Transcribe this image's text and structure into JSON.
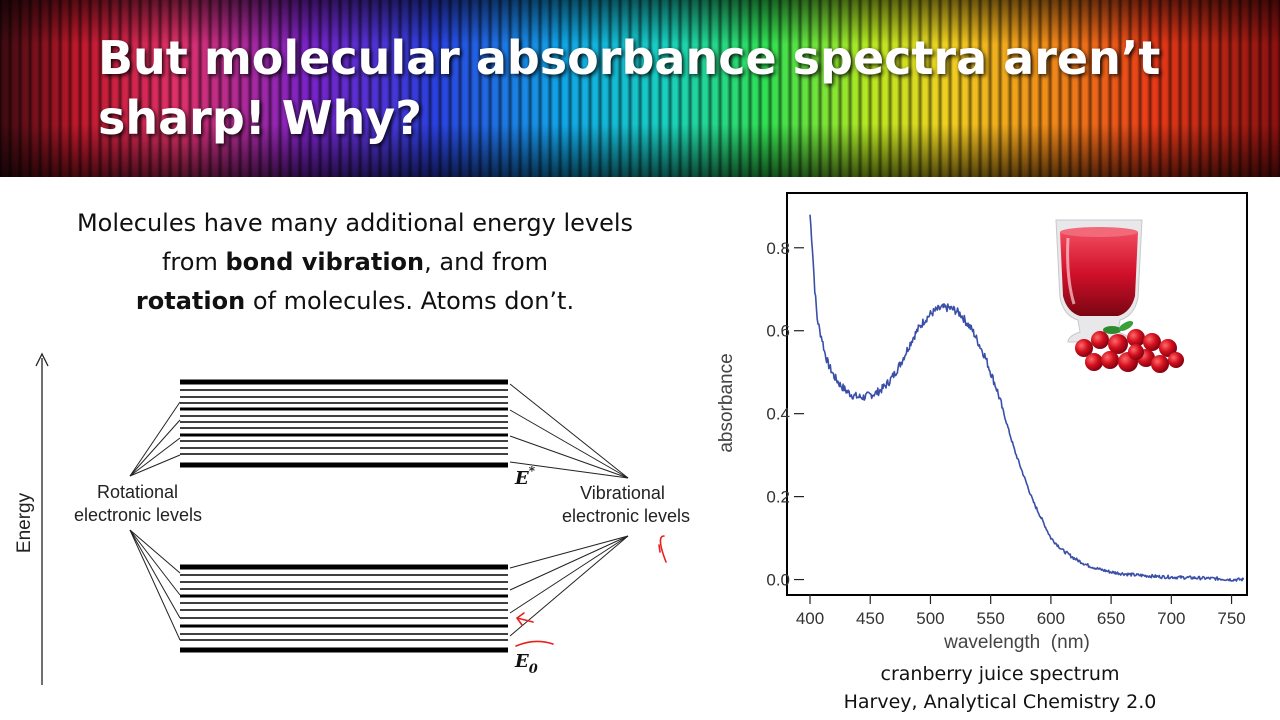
{
  "slide": {
    "title": "But molecular absorbance spectra aren’t sharp! Why?",
    "intro": {
      "part1": "Molecules have many additional energy levels from ",
      "bold1": "bond vibration",
      "part2": ", and from ",
      "bold2": "rotation",
      "part3": " of molecules.  Atoms don’t."
    }
  },
  "energy_diagram": {
    "axis_label": "Energy",
    "rotational_label": [
      "Rotational",
      "electronic levels"
    ],
    "vibrational_label": [
      "Vibrational",
      "electronic levels"
    ],
    "excited_state_label": "E",
    "excited_state_superscript": "*",
    "ground_state_label": "E",
    "ground_state_subscript": "0",
    "annotation_color": "#e8201c"
  },
  "chart_data": {
    "type": "line",
    "xlabel": "wavelength  (nm)",
    "ylabel": "absorbance",
    "xlim": [
      395,
      762
    ],
    "ylim": [
      -0.03,
      0.92
    ],
    "xticks": [
      400,
      450,
      500,
      550,
      600,
      650,
      700,
      750
    ],
    "yticks": [
      0.0,
      0.2,
      0.4,
      0.6,
      0.8
    ],
    "ytick_labels": [
      "0.0",
      "0.2",
      "0.4",
      "0.6",
      "0.8"
    ],
    "line_color": "#3a4fa8",
    "x": [
      400,
      402,
      404,
      406,
      408,
      410,
      412,
      415,
      420,
      425,
      430,
      435,
      440,
      445,
      450,
      455,
      460,
      465,
      470,
      475,
      480,
      485,
      490,
      495,
      500,
      505,
      510,
      515,
      520,
      525,
      530,
      535,
      540,
      545,
      550,
      555,
      560,
      565,
      570,
      575,
      580,
      585,
      590,
      595,
      600,
      610,
      620,
      630,
      640,
      650,
      660,
      670,
      680,
      690,
      700,
      710,
      720,
      730,
      740,
      750,
      760
    ],
    "y": [
      0.88,
      0.8,
      0.7,
      0.63,
      0.6,
      0.58,
      0.55,
      0.52,
      0.49,
      0.47,
      0.455,
      0.445,
      0.44,
      0.44,
      0.445,
      0.45,
      0.46,
      0.475,
      0.495,
      0.52,
      0.55,
      0.58,
      0.605,
      0.625,
      0.64,
      0.65,
      0.655,
      0.655,
      0.65,
      0.64,
      0.62,
      0.6,
      0.57,
      0.54,
      0.5,
      0.46,
      0.41,
      0.36,
      0.31,
      0.27,
      0.23,
      0.19,
      0.16,
      0.13,
      0.1,
      0.07,
      0.05,
      0.035,
      0.025,
      0.018,
      0.014,
      0.011,
      0.009,
      0.007,
      0.006,
      0.005,
      0.004,
      0.003,
      0.002,
      0.0,
      0.0
    ]
  },
  "caption": {
    "line1": "cranberry juice spectrum",
    "line2": "Harvey, Analytical Chemistry 2.0"
  },
  "photo": {
    "name": "cranberry-juice-glass"
  }
}
